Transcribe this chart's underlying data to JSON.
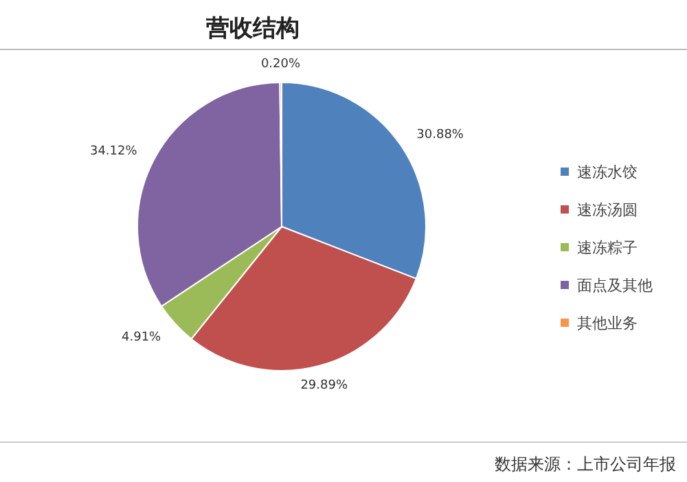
{
  "chart_data": {
    "type": "pie",
    "title": "营收结构",
    "categories": [
      "速冻水饺",
      "速冻汤圆",
      "速冻粽子",
      "面点及其他",
      "其他业务"
    ],
    "values": [
      30.88,
      29.89,
      4.91,
      34.12,
      0.2
    ],
    "colors": [
      "#4f81bd",
      "#c0504d",
      "#9bbb59",
      "#8064a2",
      "#f79646"
    ],
    "value_labels": [
      "30.88%",
      "29.89%",
      "4.91%",
      "34.12%",
      "0.20%"
    ],
    "legend": "right",
    "annotations": [
      "数据来源：上市公司年报"
    ]
  }
}
